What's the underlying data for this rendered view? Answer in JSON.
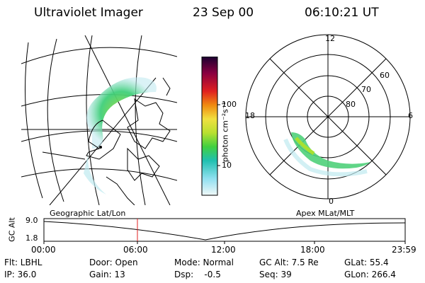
{
  "header": {
    "instrument": "Ultraviolet Imager",
    "date": "23 Sep 00",
    "time": "06:10:21 UT"
  },
  "colorbar": {
    "unit_label": "photon cm⁻²s⁻¹",
    "tick_labels": [
      "100",
      "10"
    ]
  },
  "polar_plot": {
    "mlt_labels": [
      "12",
      "18",
      "6",
      "0"
    ],
    "mlat_labels": [
      "60",
      "70",
      "80"
    ]
  },
  "panel_labels": {
    "left": "Geographic Lat/Lon",
    "right": "Apex MLat/MLT"
  },
  "alt_plot": {
    "axis_label": "GC Alt",
    "y_labels": [
      "9.0",
      "1.8"
    ],
    "time_labels": [
      "00:00",
      "06:00",
      "12:00",
      "18:00",
      "23:59"
    ],
    "current_time_marker": "06:10"
  },
  "info": {
    "filter": "Flt: LBHL",
    "door": "Door: Open",
    "mode": "Mode: Normal",
    "gc_alt": "GC Alt: 7.5 Re",
    "glat": "GLat: 55.4",
    "ip": "IP: 36.0",
    "gain": "Gain: 13",
    "dsp": "Dsp:    -0.5",
    "seq": "Seq: 39",
    "glon": "GLon: 266.4"
  }
}
